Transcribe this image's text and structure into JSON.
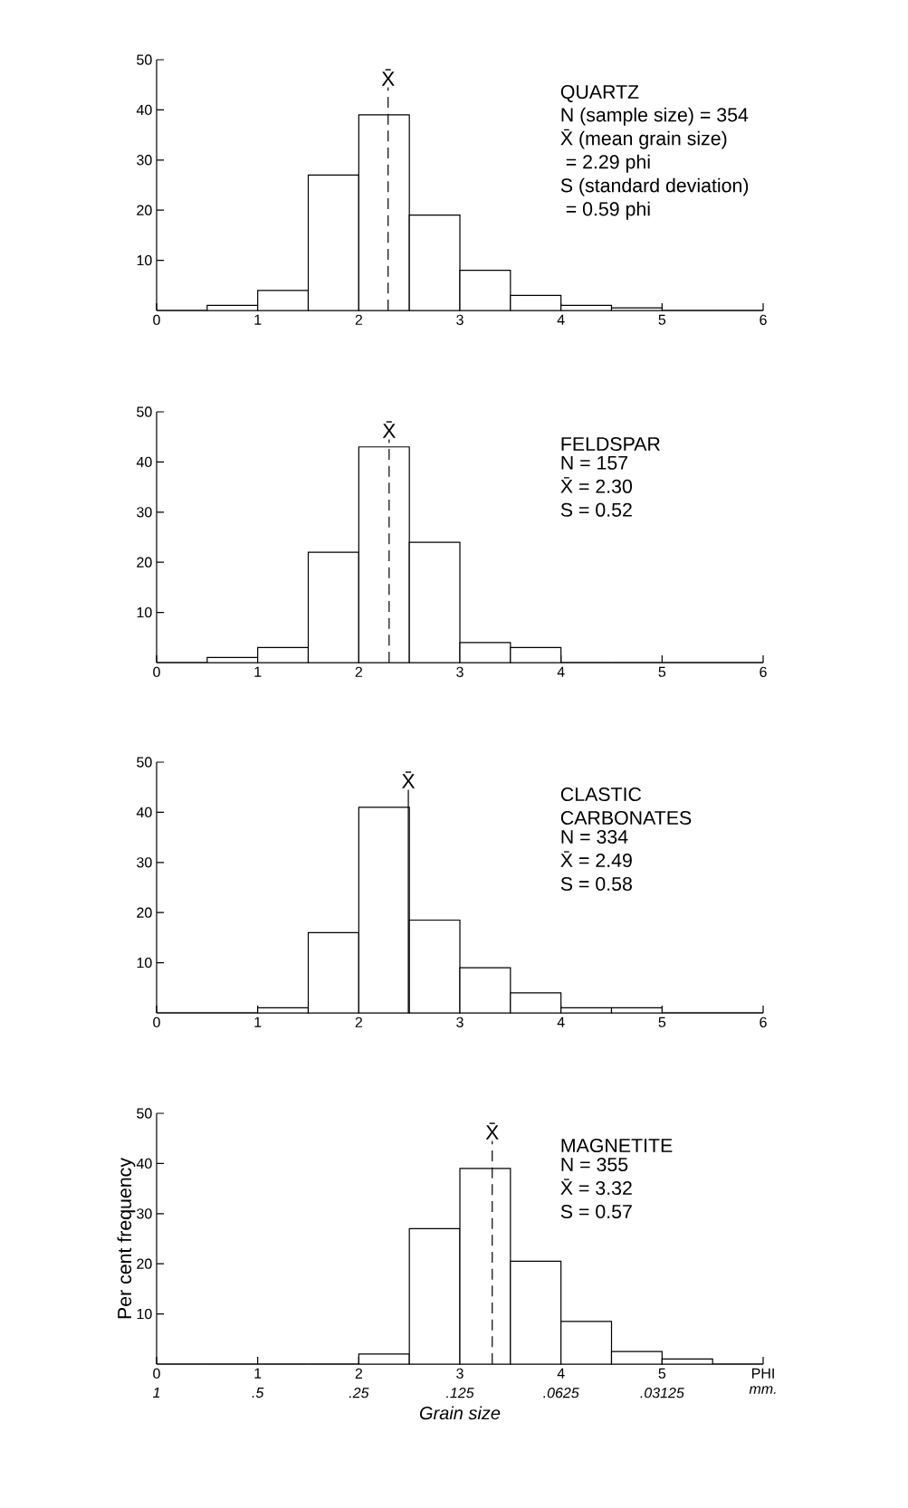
{
  "chart_data": [
    {
      "type": "histogram",
      "title": "QUARTZ",
      "bins": [
        0,
        0.5,
        1,
        1.5,
        2,
        2.5,
        3,
        3.5,
        4,
        4.5,
        5,
        5.5,
        6
      ],
      "values": [
        0,
        1,
        4,
        27,
        39,
        19,
        8,
        3,
        1,
        0.5,
        0,
        0
      ],
      "color": "#000000",
      "xlim": [
        0,
        6
      ],
      "ylim": [
        0,
        50
      ],
      "xticks": [
        0,
        1,
        2,
        3,
        4,
        5,
        6
      ],
      "yticks": [
        10,
        20,
        30,
        40,
        50
      ],
      "ref_lines": [
        {
          "axis": "x",
          "value": 2.29,
          "label": "X̄",
          "line_style": "dashed"
        }
      ],
      "annotations": [
        "N (sample size) = 354",
        "X̄ (mean grain size)",
        "      = 2.29 phi",
        "S (standard deviation)",
        "      = 0.59 phi"
      ]
    },
    {
      "type": "histogram",
      "title": "FELDSPAR",
      "bins": [
        0,
        0.5,
        1,
        1.5,
        2,
        2.5,
        3,
        3.5,
        4,
        4.5,
        5,
        5.5,
        6
      ],
      "values": [
        0,
        1,
        3,
        22,
        43,
        24,
        4,
        3,
        0,
        0,
        0,
        0
      ],
      "color": "#000000",
      "xlim": [
        0,
        6
      ],
      "ylim": [
        0,
        50
      ],
      "xticks": [
        0,
        1,
        2,
        3,
        4,
        5,
        6
      ],
      "yticks": [
        10,
        20,
        30,
        40,
        50
      ],
      "ref_lines": [
        {
          "axis": "x",
          "value": 2.3,
          "label": "X̄",
          "line_style": "dashed"
        }
      ],
      "annotations": [
        "N = 157",
        "X̄ = 2.30",
        "S = 0.52"
      ]
    },
    {
      "type": "histogram",
      "title": "CLASTIC CARBONATES",
      "bins": [
        0,
        0.5,
        1,
        1.5,
        2,
        2.5,
        3,
        3.5,
        4,
        4.5,
        5,
        5.5,
        6
      ],
      "values": [
        0,
        0,
        1,
        16,
        41,
        18.5,
        9,
        4,
        1,
        1,
        0,
        0
      ],
      "color": "#000000",
      "xlim": [
        0,
        6
      ],
      "ylim": [
        0,
        50
      ],
      "xticks": [
        0,
        1,
        2,
        3,
        4,
        5,
        6
      ],
      "yticks": [
        10,
        20,
        30,
        40,
        50
      ],
      "ref_lines": [
        {
          "axis": "x",
          "value": 2.49,
          "label": "X̄",
          "line_style": "solid"
        }
      ],
      "annotations": [
        "N = 334",
        "X̄ = 2.49",
        "S = 0.58"
      ]
    },
    {
      "type": "histogram",
      "title": "MAGNETITE",
      "xlabel": "Grain size",
      "ylabel": "Per cent frequency",
      "bins": [
        0,
        0.5,
        1,
        1.5,
        2,
        2.5,
        3,
        3.5,
        4,
        4.5,
        5,
        5.5,
        6
      ],
      "values": [
        0,
        0,
        0,
        0,
        2,
        27,
        39,
        20.5,
        8.5,
        2.5,
        1,
        0
      ],
      "color": "#000000",
      "xlim": [
        0,
        6
      ],
      "ylim": [
        0,
        50
      ],
      "xticks": [
        0,
        1,
        2,
        3,
        4,
        5,
        {
          "value": 6,
          "label": "PHI"
        }
      ],
      "yticks": [
        10,
        20,
        30,
        40,
        50
      ],
      "x2lim": [
        1,
        0.015625
      ],
      "log": "x2",
      "x2label": "mm.",
      "x2ticks": [
        1,
        {
          "value": 0.5,
          "label": ".5"
        },
        {
          "value": 0.25,
          "label": ".25"
        },
        {
          "value": 0.125,
          "label": ".125"
        },
        {
          "value": 0.0625,
          "label": ".0625"
        },
        {
          "value": 0.03125,
          "label": ".03125"
        }
      ],
      "ref_lines": [
        {
          "axis": "x",
          "value": 3.32,
          "label": "X̄",
          "line_style": "dashed"
        }
      ],
      "annotations": [
        "N = 355",
        "X̄ = 3.32",
        "S = 0.57"
      ]
    }
  ]
}
